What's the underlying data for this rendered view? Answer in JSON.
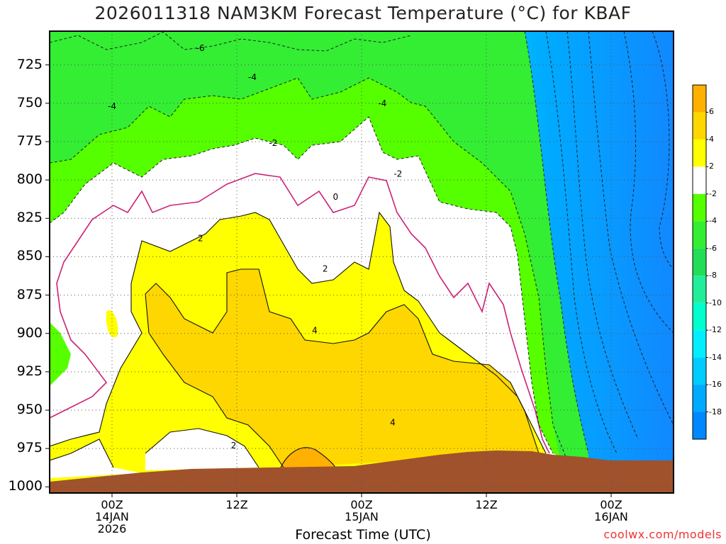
{
  "chart_data": {
    "type": "heatmap",
    "title": "2026011318 NAM3KM Forecast Temperature (°C) for KBAF",
    "xlabel": "Forecast Time (UTC)",
    "ylabel": "",
    "y_ticks": [
      725,
      750,
      775,
      800,
      825,
      850,
      875,
      900,
      925,
      950,
      975,
      1000
    ],
    "ylim": [
      1004,
      703
    ],
    "x_ticks": [
      {
        "hour": 6,
        "line1": "00Z",
        "line2": "14JAN",
        "line3": "2026"
      },
      {
        "hour": 18,
        "line1": "12Z",
        "line2": "",
        "line3": ""
      },
      {
        "hour": 30,
        "line1": "00Z",
        "line2": "15JAN",
        "line3": ""
      },
      {
        "hour": 42,
        "line1": "12Z",
        "line2": "",
        "line3": ""
      },
      {
        "hour": 54,
        "line1": "00Z",
        "line2": "16JAN",
        "line3": ""
      }
    ],
    "xlim": [
      0,
      60
    ],
    "grid": true,
    "contour_labels": [
      {
        "text": "-6",
        "hour": 14.5,
        "p": 714
      },
      {
        "text": "-4",
        "hour": 6,
        "p": 752
      },
      {
        "text": "-4",
        "hour": 19.5,
        "p": 733
      },
      {
        "text": "-4",
        "hour": 32,
        "p": 750
      },
      {
        "text": "-2",
        "hour": 21.5,
        "p": 776
      },
      {
        "text": "-2",
        "hour": 33.5,
        "p": 796
      },
      {
        "text": "0",
        "hour": 27.5,
        "p": 811
      },
      {
        "text": "2",
        "hour": 14.5,
        "p": 838
      },
      {
        "text": "2",
        "hour": 26.5,
        "p": 858
      },
      {
        "text": "2",
        "hour": 17.7,
        "p": 973
      },
      {
        "text": "4",
        "hour": 25.5,
        "p": 898
      },
      {
        "text": "4",
        "hour": 33,
        "p": 958
      }
    ],
    "colorbar": {
      "labels": [
        "6",
        "4",
        "2",
        "-2",
        "-4",
        "-6",
        "-8",
        "-10",
        "-12",
        "-14",
        "-16",
        "-18"
      ],
      "colors": [
        "#ffb000",
        "#ffd700",
        "#ffff00",
        "#ffffff",
        "#55ff00",
        "#33ee33",
        "#22dd55",
        "#22ee99",
        "#00ffcc",
        "#00eeff",
        "#00ccff",
        "#00aaff",
        "#0088ff"
      ]
    },
    "colors": {
      "warm_dark": "#ffb000",
      "warm": "#ffd700",
      "warm_light": "#ffff00",
      "zero_band": "#ffffff",
      "cool_light": "#55ff00",
      "cool": "#33ee33",
      "cold_1": "#22dd88",
      "cold_2": "#00eecc",
      "cold_3": "#00e5ff",
      "cold_4": "#00bbff",
      "cold_5": "#0099ff",
      "terrain": "#a0522d",
      "freezing_line": "#cc2277"
    }
  },
  "credit": "coolwx.com/models"
}
